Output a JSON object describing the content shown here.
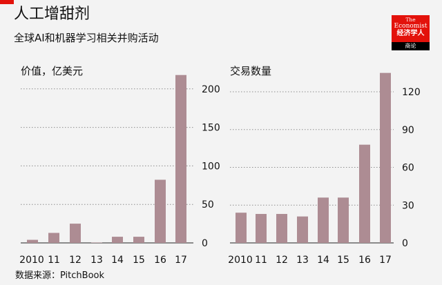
{
  "title": "人工增甜剂",
  "subtitle": "全球AI和机器学习相关并购活动",
  "source": "数据来源：PitchBook",
  "logo": {
    "line1": "The",
    "line2": "Economist",
    "line3": "经济学人",
    "line4": "商论"
  },
  "colors": {
    "bar": "#ad8c93",
    "accent": "#e3120b",
    "gridline": "#8c8c8c",
    "background": "#f3f3f3"
  },
  "chart_data": [
    {
      "type": "bar",
      "title": "价值，亿美元",
      "categories": [
        "2010",
        "11",
        "12",
        "13",
        "14",
        "15",
        "16",
        "17"
      ],
      "values": [
        4,
        13,
        25,
        0,
        8,
        8,
        82,
        218
      ],
      "yticks": [
        0,
        50,
        100,
        150,
        200
      ],
      "ylim": [
        0,
        224
      ],
      "grid": true
    },
    {
      "type": "bar",
      "title": "交易数量",
      "categories": [
        "2010",
        "11",
        "12",
        "13",
        "14",
        "15",
        "16",
        "17"
      ],
      "values": [
        24,
        23,
        23,
        21,
        36,
        36,
        78,
        135
      ],
      "yticks": [
        0,
        30,
        60,
        90,
        120
      ],
      "ylim": [
        0,
        137
      ],
      "grid": true
    }
  ]
}
